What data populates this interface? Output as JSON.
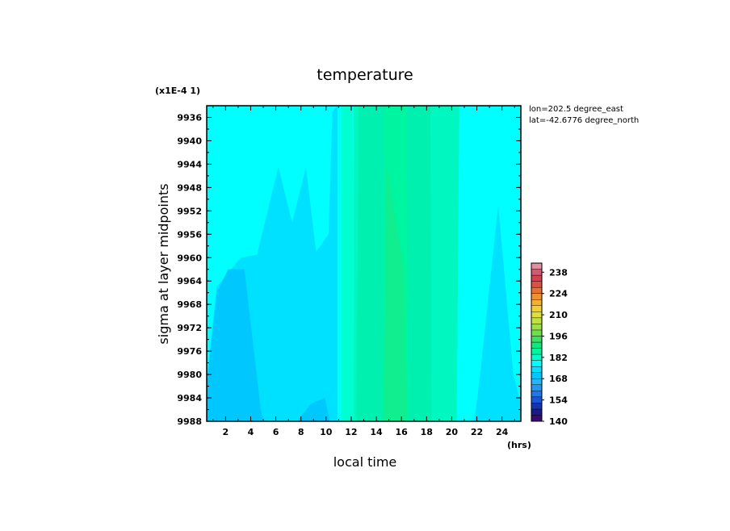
{
  "chart_data": {
    "type": "heatmap",
    "title": "temperature",
    "xlabel": "local time",
    "ylabel": "sigma at layer midpoints",
    "x_unit": "(hrs)",
    "y_scale_note": "(x1E-4 1)",
    "annotation_lines": [
      "lon=202.5 degree_east",
      "lat=-42.6776 degree_north"
    ],
    "x_ticks": [
      "2",
      "4",
      "6",
      "8",
      "10",
      "12",
      "14",
      "16",
      "18",
      "20",
      "22",
      "24"
    ],
    "y_ticks": [
      "9936",
      "9940",
      "9944",
      "9948",
      "9952",
      "9956",
      "9960",
      "9964",
      "9968",
      "9972",
      "9976",
      "9980",
      "9984",
      "9988"
    ],
    "xlim": [
      0.5,
      25.5
    ],
    "ylim": [
      9988,
      9934
    ],
    "colorbar": {
      "levels": [
        140,
        144,
        148,
        152,
        156,
        160,
        164,
        168,
        172,
        176,
        180,
        184,
        188,
        192,
        196,
        200,
        204,
        208,
        212,
        216,
        220,
        224,
        228,
        232,
        236,
        240,
        244
      ],
      "labels": [
        "140",
        "154",
        "168",
        "182",
        "196",
        "210",
        "224",
        "238"
      ],
      "colors": [
        "#3a0b6e",
        "#1b1a8a",
        "#1433b3",
        "#1a55d4",
        "#1e78e6",
        "#2398f0",
        "#27b5f5",
        "#00c8ff",
        "#00e0ff",
        "#00ffff",
        "#00ffd0",
        "#00f5a0",
        "#10e880",
        "#3ee060",
        "#6ee050",
        "#9ae048",
        "#c0e040",
        "#dde03a",
        "#f0d035",
        "#f5b030",
        "#f09030",
        "#e87030",
        "#e05040",
        "#d84050",
        "#d05a70",
        "#e090a0"
      ]
    },
    "x": [
      1,
      2,
      3,
      4,
      5,
      6,
      7,
      8,
      9,
      10,
      11,
      12,
      13,
      14,
      15,
      16,
      17,
      18,
      19,
      20,
      21,
      22,
      23,
      24,
      25
    ],
    "field_description_levels": [
      168,
      172,
      176,
      180,
      184
    ]
  }
}
